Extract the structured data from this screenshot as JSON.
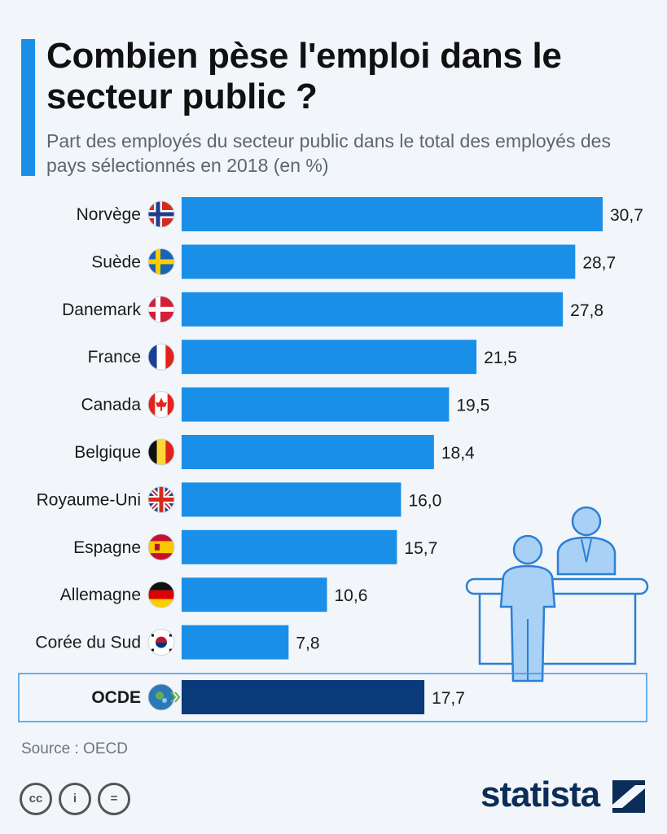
{
  "header": {
    "title": "Combien pèse l'emploi dans le secteur public ?",
    "subtitle": "Part des employés du secteur public dans le total des employés des pays sélectionnés en 2018 (en %)"
  },
  "chart_data": {
    "type": "bar",
    "orientation": "horizontal",
    "categories": [
      "Norvège",
      "Suède",
      "Danemark",
      "France",
      "Canada",
      "Belgique",
      "Royaume-Uni",
      "Espagne",
      "Allemagne",
      "Corée du Sud",
      "OCDE"
    ],
    "values": [
      30.7,
      28.7,
      27.8,
      21.5,
      19.5,
      18.4,
      16.0,
      15.7,
      10.6,
      7.8,
      17.7
    ],
    "value_labels": [
      "30,7",
      "28,7",
      "27,8",
      "21,5",
      "19,5",
      "18,4",
      "16,0",
      "15,7",
      "10,6",
      "7,8",
      "17,7"
    ],
    "flags": [
      "norway-flag-icon",
      "sweden-flag-icon",
      "denmark-flag-icon",
      "france-flag-icon",
      "canada-flag-icon",
      "belgium-flag-icon",
      "uk-flag-icon",
      "spain-flag-icon",
      "germany-flag-icon",
      "south-korea-flag-icon",
      "oecd-logo-icon"
    ],
    "highlight": "OCDE",
    "xlim": [
      0,
      30.7
    ],
    "grid": false,
    "colors": {
      "bar": "#1a8fe8",
      "highlight_bar": "#0b3a7a"
    }
  },
  "footer": {
    "source": "Source : OECD",
    "license_icons": [
      "cc-icon",
      "attribution-icon",
      "no-derivatives-icon"
    ],
    "license_glyphs": [
      "cc",
      "i",
      "="
    ],
    "brand": "statista"
  }
}
